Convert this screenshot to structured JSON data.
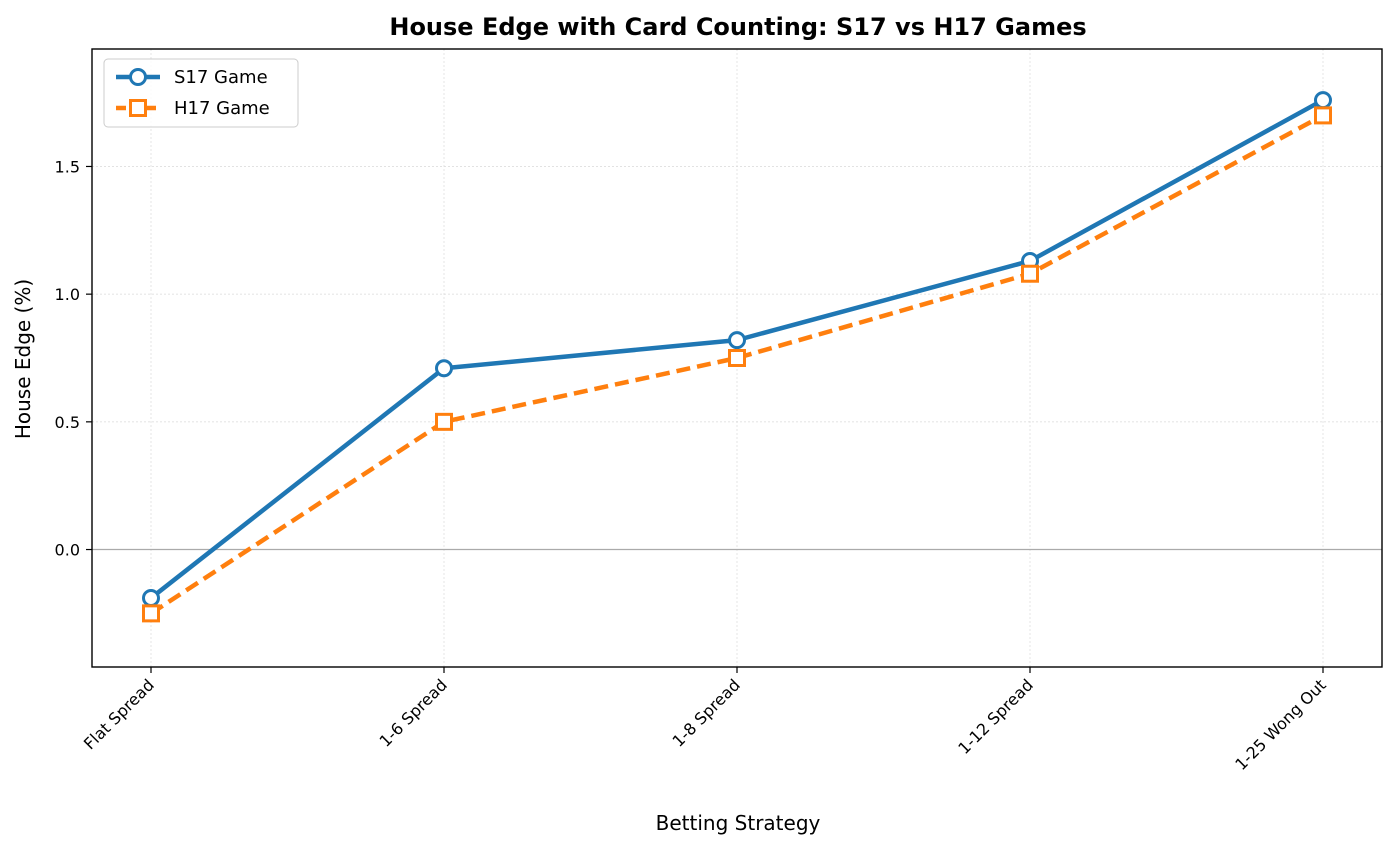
{
  "chart_data": {
    "type": "line",
    "title": "House Edge with Card Counting: S17 vs H17 Games",
    "xlabel": "Betting Strategy",
    "ylabel": "House Edge (%)",
    "categories": [
      "Flat Spread",
      "1-6 Spread",
      "1-8 Spread",
      "1-12 Spread",
      "1-25 Wong Out"
    ],
    "ylim": [
      -0.46,
      1.96
    ],
    "yticks": [
      "0.0",
      "0.5",
      "1.0",
      "1.5"
    ],
    "grid": true,
    "zero_line": true,
    "legend_position": "top-left",
    "series": [
      {
        "name": "S17 Game",
        "values": [
          -0.19,
          0.71,
          0.82,
          1.13,
          1.76
        ],
        "color": "#1f77b4",
        "marker": "circle",
        "line_style": "solid"
      },
      {
        "name": "H17 Game",
        "values": [
          -0.25,
          0.5,
          0.75,
          1.08,
          1.7
        ],
        "color": "#ff7f0e",
        "marker": "square",
        "line_style": "dashed"
      }
    ]
  }
}
